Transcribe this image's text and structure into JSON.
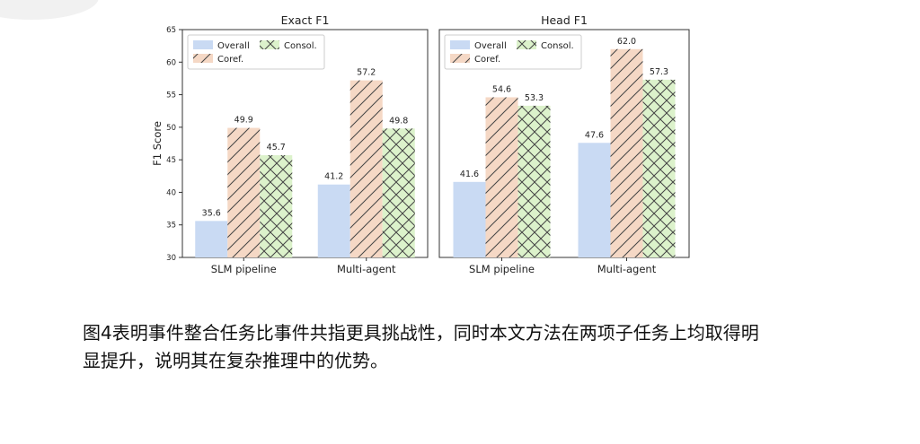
{
  "caption": {
    "line1": "图4表明事件整合任务比事件共指更具挑战性，同时本文方法在两项子任务上均取得明",
    "line2": "显提升，说明其在复杂推理中的优势。"
  },
  "colors": {
    "overall": "#c9daf3",
    "coref_fill": "#f5d8c5",
    "consol_fill": "#dcf2cb",
    "hatch": "#444444",
    "axis": "#333333"
  },
  "chart_data": [
    {
      "type": "bar",
      "title": "Exact F1",
      "ylabel": "F1 Score",
      "ylim": [
        30,
        65
      ],
      "yticks": [
        30,
        35,
        40,
        45,
        50,
        55,
        60,
        65
      ],
      "categories": [
        "SLM pipeline",
        "Multi-agent"
      ],
      "series": [
        {
          "name": "Overall",
          "values": [
            35.6,
            41.2
          ],
          "hatch": "none"
        },
        {
          "name": "Coref.",
          "values": [
            49.9,
            57.2
          ],
          "hatch": "diagonal"
        },
        {
          "name": "Consol.",
          "values": [
            45.7,
            49.8
          ],
          "hatch": "crosshatch"
        }
      ],
      "legend": "top-left"
    },
    {
      "type": "bar",
      "title": "Head F1",
      "ylabel": "",
      "ylim": [
        30,
        65
      ],
      "yticks": [],
      "categories": [
        "SLM pipeline",
        "Multi-agent"
      ],
      "series": [
        {
          "name": "Overall",
          "values": [
            41.6,
            47.6
          ],
          "hatch": "none"
        },
        {
          "name": "Coref.",
          "values": [
            54.6,
            62.0
          ],
          "hatch": "diagonal"
        },
        {
          "name": "Consol.",
          "values": [
            53.3,
            57.3
          ],
          "hatch": "crosshatch"
        }
      ],
      "legend": "top-left"
    }
  ]
}
